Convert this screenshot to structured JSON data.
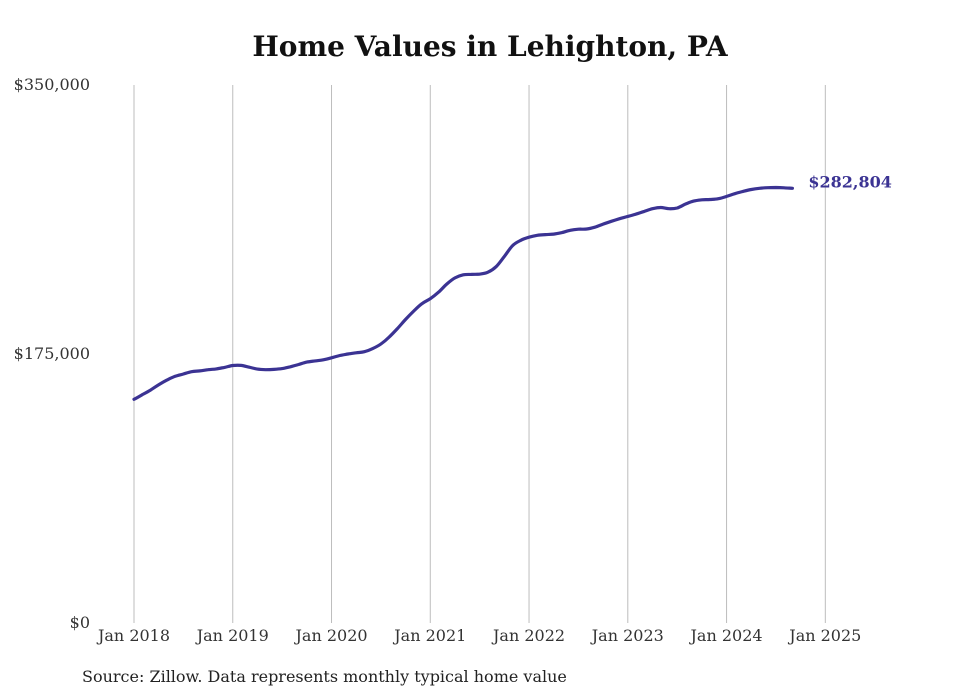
{
  "chart_data": {
    "type": "line",
    "title": "Home Values in Lehighton, PA",
    "source": "Source: Zillow. Data represents monthly typical home value",
    "ylim": [
      0,
      350000
    ],
    "y_ticks": [
      {
        "value": 0,
        "label": "$0"
      },
      {
        "value": 175000,
        "label": "$175,000"
      },
      {
        "value": 350000,
        "label": "$350,000"
      }
    ],
    "x_ticks": [
      {
        "value": "2018-01",
        "label": "Jan 2018"
      },
      {
        "value": "2019-01",
        "label": "Jan 2019"
      },
      {
        "value": "2020-01",
        "label": "Jan 2020"
      },
      {
        "value": "2021-01",
        "label": "Jan 2021"
      },
      {
        "value": "2022-01",
        "label": "Jan 2022"
      },
      {
        "value": "2023-01",
        "label": "Jan 2023"
      },
      {
        "value": "2024-01",
        "label": "Jan 2024"
      },
      {
        "value": "2025-01",
        "label": "Jan 2025"
      }
    ],
    "xlim": [
      "2018-01",
      "2025-07"
    ],
    "grid": "vertical",
    "line_color": "#3b3393",
    "series": [
      {
        "points": [
          [
            "2018-01",
            145500
          ],
          [
            "2018-02",
            148500
          ],
          [
            "2018-03",
            151500
          ],
          [
            "2018-04",
            155000
          ],
          [
            "2018-05",
            158000
          ],
          [
            "2018-06",
            160500
          ],
          [
            "2018-07",
            162000
          ],
          [
            "2018-08",
            163500
          ],
          [
            "2018-09",
            164000
          ],
          [
            "2018-10",
            164800
          ],
          [
            "2018-11",
            165300
          ],
          [
            "2018-12",
            166300
          ],
          [
            "2019-01",
            167500
          ],
          [
            "2019-02",
            167600
          ],
          [
            "2019-03",
            166400
          ],
          [
            "2019-04",
            165200
          ],
          [
            "2019-05",
            164800
          ],
          [
            "2019-06",
            165000
          ],
          [
            "2019-07",
            165500
          ],
          [
            "2019-08",
            166700
          ],
          [
            "2019-09",
            168200
          ],
          [
            "2019-10",
            169700
          ],
          [
            "2019-11",
            170500
          ],
          [
            "2019-12",
            171200
          ],
          [
            "2020-01",
            172500
          ],
          [
            "2020-02",
            174000
          ],
          [
            "2020-03",
            175000
          ],
          [
            "2020-04",
            175800
          ],
          [
            "2020-05",
            176500
          ],
          [
            "2020-06",
            178500
          ],
          [
            "2020-07",
            181500
          ],
          [
            "2020-08",
            186000
          ],
          [
            "2020-09",
            191500
          ],
          [
            "2020-10",
            197500
          ],
          [
            "2020-11",
            203000
          ],
          [
            "2020-12",
            207800
          ],
          [
            "2021-01",
            211000
          ],
          [
            "2021-02",
            215200
          ],
          [
            "2021-03",
            220500
          ],
          [
            "2021-04",
            224500
          ],
          [
            "2021-05",
            226500
          ],
          [
            "2021-06",
            226800
          ],
          [
            "2021-07",
            227000
          ],
          [
            "2021-08",
            228200
          ],
          [
            "2021-09",
            231800
          ],
          [
            "2021-10",
            238500
          ],
          [
            "2021-11",
            245500
          ],
          [
            "2021-12",
            249000
          ],
          [
            "2022-01",
            251000
          ],
          [
            "2022-02",
            252200
          ],
          [
            "2022-03",
            252700
          ],
          [
            "2022-04",
            253000
          ],
          [
            "2022-05",
            254000
          ],
          [
            "2022-06",
            255500
          ],
          [
            "2022-07",
            256200
          ],
          [
            "2022-08",
            256300
          ],
          [
            "2022-09",
            257500
          ],
          [
            "2022-10",
            259500
          ],
          [
            "2022-11",
            261300
          ],
          [
            "2022-12",
            263000
          ],
          [
            "2023-01",
            264500
          ],
          [
            "2023-02",
            266000
          ],
          [
            "2023-03",
            267800
          ],
          [
            "2023-04",
            269500
          ],
          [
            "2023-05",
            270300
          ],
          [
            "2023-06",
            269500
          ],
          [
            "2023-07",
            270000
          ],
          [
            "2023-08",
            272500
          ],
          [
            "2023-09",
            274500
          ],
          [
            "2023-10",
            275300
          ],
          [
            "2023-11",
            275500
          ],
          [
            "2023-12",
            276000
          ],
          [
            "2024-01",
            277500
          ],
          [
            "2024-02",
            279300
          ],
          [
            "2024-03",
            280800
          ],
          [
            "2024-04",
            282000
          ],
          [
            "2024-05",
            282800
          ],
          [
            "2024-06",
            283200
          ],
          [
            "2024-07",
            283300
          ],
          [
            "2024-08",
            283100
          ],
          [
            "2024-09",
            282804
          ]
        ]
      }
    ],
    "end_label": "$282,804"
  }
}
